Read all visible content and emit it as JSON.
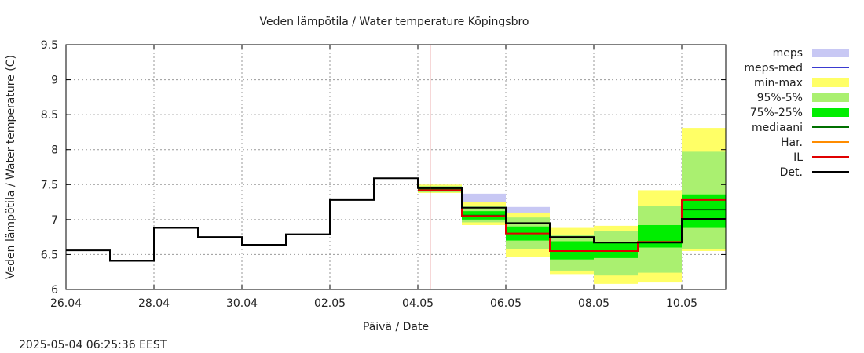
{
  "chart_data": {
    "type": "line",
    "title": "Veden lämpötila / Water temperature Köpingsbro",
    "xlabel": "Päivä / Date",
    "ylabel": "Veden lämpötila / Water temperature (C)",
    "timestamp": "2025-05-04 06:25:36 EEST",
    "x_range_days": [
      0,
      15
    ],
    "x_ticks": [
      {
        "label": "26.04",
        "day": 0
      },
      {
        "label": "28.04",
        "day": 2
      },
      {
        "label": "30.04",
        "day": 4
      },
      {
        "label": "02.05",
        "day": 6
      },
      {
        "label": "04.05",
        "day": 8
      },
      {
        "label": "06.05",
        "day": 10
      },
      {
        "label": "08.05",
        "day": 12
      },
      {
        "label": "10.05",
        "day": 14
      }
    ],
    "ylim": [
      6,
      9.5
    ],
    "y_ticks": [
      "6",
      "6.5",
      "7",
      "7.5",
      "8",
      "8.5",
      "9",
      "9.5"
    ],
    "grid": true,
    "forecast_start_day": 8.28,
    "colors": {
      "meps": "#c8c8f4",
      "meps_med": "#3a3ad0",
      "minmax": "#ffff66",
      "p95_5": "#aaf070",
      "p75_25": "#00ee00",
      "median": "#007000",
      "har": "#ff8c00",
      "il": "#e00000",
      "det": "#000000",
      "now_line": "#cc2222",
      "grid": "#999999"
    },
    "legend": [
      {
        "key": "meps",
        "label": "meps",
        "style": "band"
      },
      {
        "key": "meps_med",
        "label": "meps-med",
        "style": "line"
      },
      {
        "key": "minmax",
        "label": "min-max",
        "style": "band"
      },
      {
        "key": "p95_5",
        "label": "95%-5%",
        "style": "band"
      },
      {
        "key": "p75_25",
        "label": "75%-25%",
        "style": "band"
      },
      {
        "key": "median",
        "label": "mediaani",
        "style": "line"
      },
      {
        "key": "har",
        "label": "Har.",
        "style": "line"
      },
      {
        "key": "il",
        "label": "IL",
        "style": "line"
      },
      {
        "key": "det",
        "label": "Det.",
        "style": "line"
      }
    ],
    "observed": [
      {
        "d0": 0,
        "d1": 1,
        "y": 6.56
      },
      {
        "d0": 1,
        "d1": 2,
        "y": 6.41
      },
      {
        "d0": 2,
        "d1": 3,
        "y": 6.88
      },
      {
        "d0": 3,
        "d1": 4,
        "y": 6.75
      },
      {
        "d0": 4,
        "d1": 5,
        "y": 6.64
      },
      {
        "d0": 5,
        "d1": 6,
        "y": 6.79
      },
      {
        "d0": 6,
        "d1": 7,
        "y": 7.28
      },
      {
        "d0": 7,
        "d1": 8,
        "y": 7.59
      }
    ],
    "forecast": [
      {
        "d0": 8,
        "d1": 9,
        "meps": [
          7.38,
          7.5
        ],
        "minmax": [
          7.38,
          7.5
        ],
        "p95_5": [
          7.39,
          7.48
        ],
        "p75_25": [
          7.41,
          7.46
        ],
        "median": 7.44,
        "il": 7.42,
        "det": 7.45
      },
      {
        "d0": 9,
        "d1": 10,
        "meps": [
          7.18,
          7.37
        ],
        "minmax": [
          6.92,
          7.25
        ],
        "p95_5": [
          6.96,
          7.2
        ],
        "p75_25": [
          7.0,
          7.12
        ],
        "median": 7.06,
        "il": 7.05,
        "det": 7.17
      },
      {
        "d0": 10,
        "d1": 11,
        "meps": [
          6.88,
          7.18
        ],
        "minmax": [
          6.47,
          7.1
        ],
        "p95_5": [
          6.58,
          7.03
        ],
        "p75_25": [
          6.7,
          6.9
        ],
        "median": 6.8,
        "il": 6.8,
        "det": 6.95
      },
      {
        "d0": 11,
        "d1": 12,
        "meps": [
          6.7,
          6.82
        ],
        "minmax": [
          6.22,
          6.88
        ],
        "p95_5": [
          6.27,
          6.78
        ],
        "p75_25": [
          6.43,
          6.69
        ],
        "median": 6.55,
        "il": 6.55,
        "det": 6.75
      },
      {
        "d0": 12,
        "d1": 13,
        "meps": [
          6.65,
          6.7
        ],
        "minmax": [
          6.08,
          6.91
        ],
        "p95_5": [
          6.2,
          6.84
        ],
        "p75_25": [
          6.45,
          6.67
        ],
        "median": 6.55,
        "il": 6.55,
        "det": 6.67
      },
      {
        "d0": 13,
        "d1": 14,
        "meps": [
          6.65,
          6.7
        ],
        "minmax": [
          6.1,
          7.42
        ],
        "p95_5": [
          6.24,
          7.2
        ],
        "p75_25": [
          6.6,
          6.92
        ],
        "median": 6.68,
        "il": 6.68,
        "det": 6.67
      },
      {
        "d0": 14,
        "d1": 15,
        "meps": [
          6.9,
          7.2
        ],
        "minmax": [
          6.55,
          8.31
        ],
        "p95_5": [
          6.58,
          7.97
        ],
        "p75_25": [
          6.88,
          7.36
        ],
        "median": 7.14,
        "il": 7.28,
        "det": 7.01
      }
    ]
  }
}
